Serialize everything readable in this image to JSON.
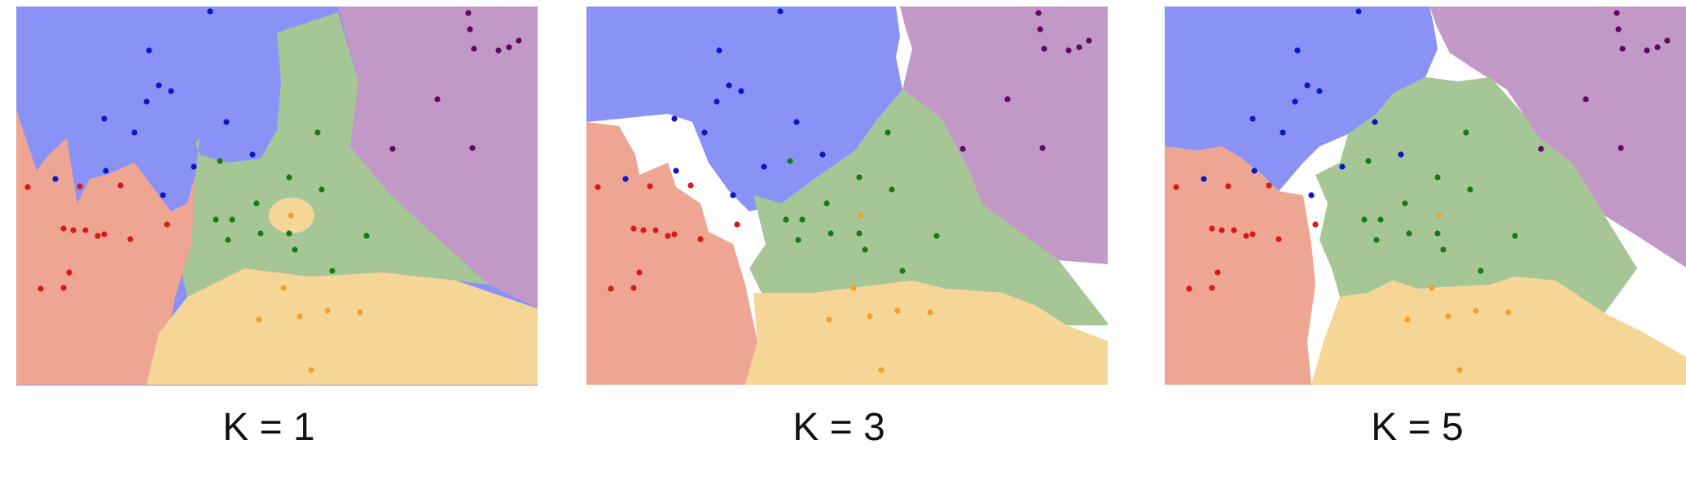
{
  "colors": {
    "blue_region": "#8A92F5",
    "purple_region": "#C198C6",
    "green_region": "#A6C795",
    "red_region": "#EEA693",
    "orange_region": "#F6D697",
    "blue_point": "#0B17C8",
    "purple_point": "#5C0A5E",
    "green_point": "#167A1A",
    "red_point": "#D61919",
    "orange_point": "#F2A22A"
  },
  "panels": [
    {
      "key": "k1",
      "caption": "K = 1"
    },
    {
      "key": "k3",
      "caption": "K = 3"
    },
    {
      "key": "k5",
      "caption": "K = 5"
    }
  ],
  "classes": [
    "blue",
    "purple",
    "green",
    "red",
    "orange"
  ]
}
